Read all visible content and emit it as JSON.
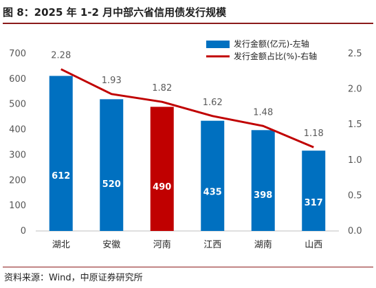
{
  "figure": {
    "title": "图 8：2025 年 1-2 月中部六省信用债发行规模",
    "source": "资料来源：Wind，中原证券研究所"
  },
  "colors": {
    "bar": "#0070c0",
    "bar_highlight": "#c00000",
    "line": "#c00000",
    "title_rule": "#8b1a1a"
  },
  "chart_data": {
    "type": "bar+line",
    "categories": [
      "湖北",
      "安徽",
      "河南",
      "江西",
      "湖南",
      "山西"
    ],
    "series": [
      {
        "name": "发行金额(亿元)-左轴",
        "type": "bar",
        "axis": "left",
        "values": [
          612,
          520,
          490,
          435,
          398,
          317
        ],
        "highlight_index": 2
      },
      {
        "name": "发行金额占比(%)-右轴",
        "type": "line",
        "axis": "right",
        "values": [
          2.28,
          1.93,
          1.82,
          1.62,
          1.48,
          1.18
        ],
        "labels": [
          "2.28",
          "1.93",
          "1.82",
          "1.62",
          "1.48",
          "1.18"
        ]
      }
    ],
    "y_left": {
      "min": 0,
      "max": 700,
      "ticks": [
        "0",
        "100",
        "200",
        "300",
        "400",
        "500",
        "600",
        "700"
      ]
    },
    "y_right": {
      "min": 0,
      "max": 2.5,
      "ticks": [
        "0.0",
        "0.5",
        "1.0",
        "1.5",
        "2.0",
        "2.5"
      ]
    },
    "grid": false,
    "legend_position": "top-right"
  }
}
